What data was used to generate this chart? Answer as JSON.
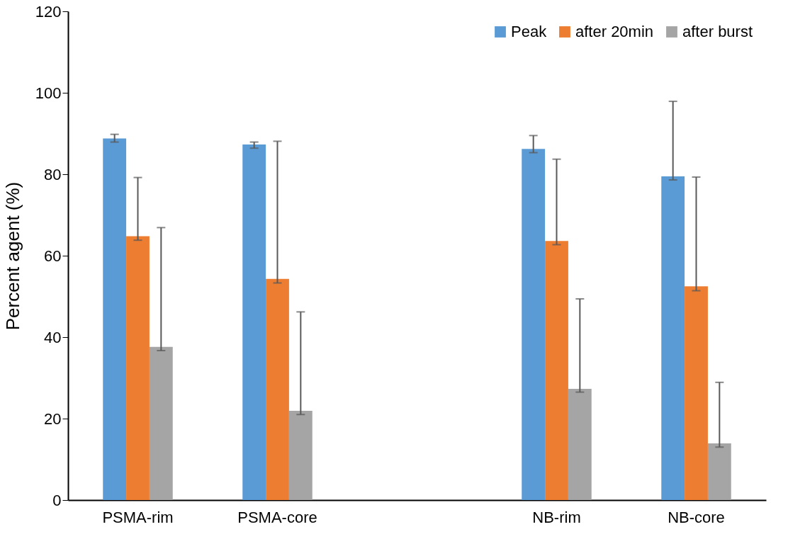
{
  "chart_data": {
    "type": "bar",
    "ylabel": "Percent agent (%)",
    "categories": [
      "PSMA-rim",
      "PSMA-core",
      null,
      "NB-rim",
      "NB-core"
    ],
    "series": [
      {
        "name": "Peak",
        "color": "#5b9bd5",
        "values": [
          88.8,
          87.3,
          null,
          86.2,
          79.5
        ],
        "errors": [
          [
            87.9,
            89.8
          ],
          [
            86.4,
            87.9
          ],
          null,
          [
            85.3,
            89.5
          ],
          [
            78.6,
            97.9
          ]
        ]
      },
      {
        "name": "after 20min",
        "color": "#ed7d31",
        "values": [
          64.8,
          54.3,
          null,
          63.6,
          52.5
        ],
        "errors": [
          [
            63.8,
            79.2
          ],
          [
            53.3,
            88.1
          ],
          null,
          [
            62.7,
            83.7
          ],
          [
            51.4,
            79.3
          ]
        ]
      },
      {
        "name": "after burst",
        "color": "#a5a5a5",
        "values": [
          37.6,
          21.9,
          null,
          27.3,
          13.9
        ],
        "errors": [
          [
            36.7,
            66.9
          ],
          [
            21.0,
            46.2
          ],
          null,
          [
            26.5,
            49.4
          ],
          [
            13.0,
            28.9
          ]
        ]
      }
    ],
    "ylim": [
      0,
      120
    ],
    "yticks": [
      0,
      20,
      40,
      60,
      80,
      100,
      120
    ],
    "grid": false,
    "legend": "top right"
  }
}
